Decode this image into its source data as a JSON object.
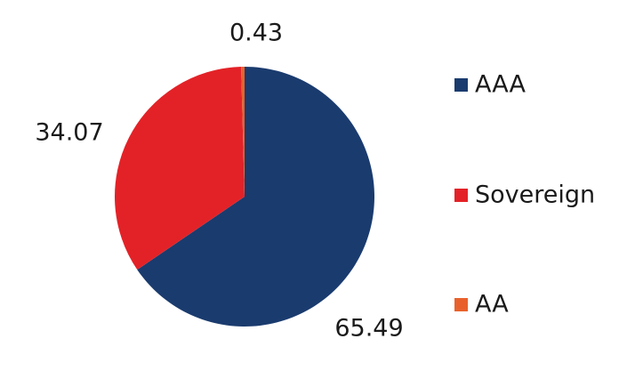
{
  "chart_data": {
    "type": "pie",
    "categories": [
      "AAA",
      "Sovereign",
      "AA"
    ],
    "values": [
      65.49,
      34.07,
      0.43
    ],
    "colors": [
      "#1a3b6e",
      "#e32227",
      "#e8612c"
    ],
    "legend": "right"
  }
}
